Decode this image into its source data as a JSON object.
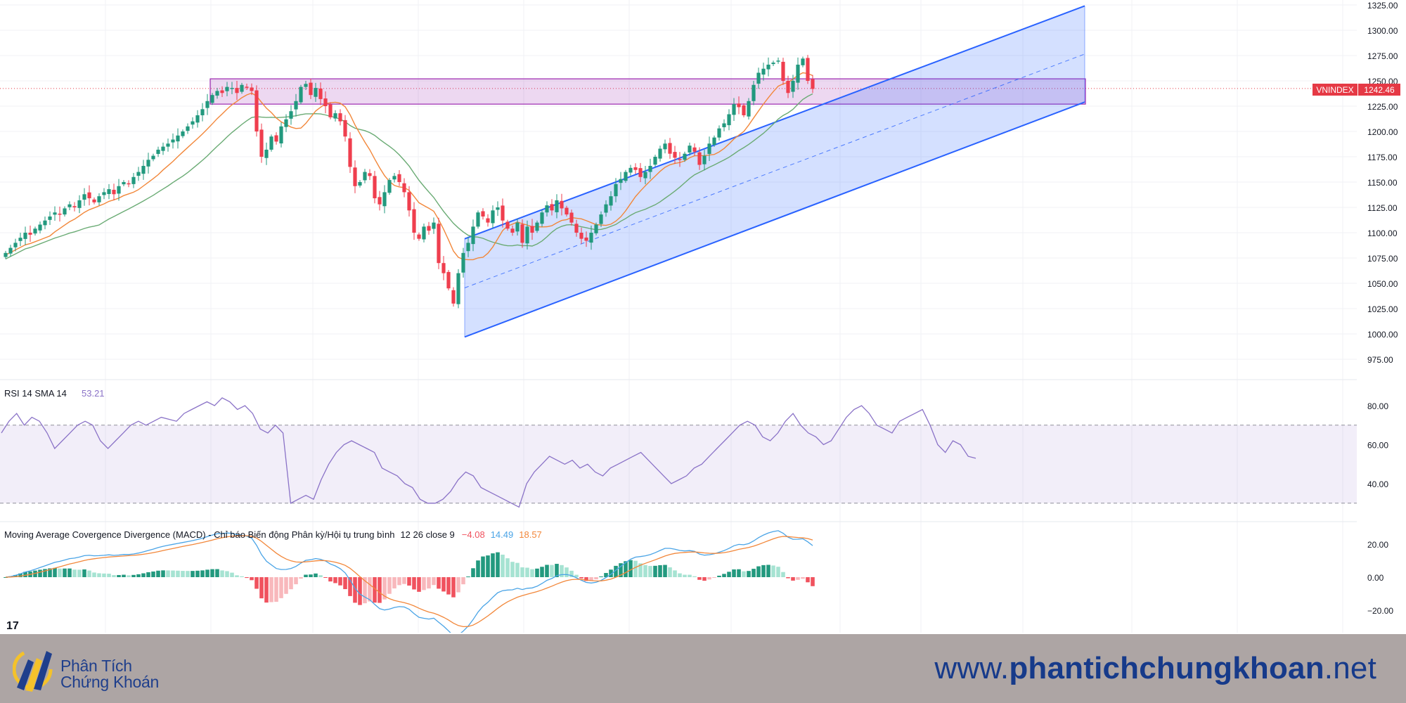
{
  "chart_data": [
    {
      "type": "candlestick",
      "symbol": "VNINDEX",
      "last_price": "1242.46",
      "ylim": [
        960,
        1325
      ],
      "yticks": [
        "1325.00",
        "1300.00",
        "1275.00",
        "1250.00",
        "1225.00",
        "1200.00",
        "1175.00",
        "1150.00",
        "1125.00",
        "1100.00",
        "1075.00",
        "1050.00",
        "1025.00",
        "1000.00",
        "975.00"
      ],
      "grid": true,
      "up_color": "#22997e",
      "down_color": "#ef3e4e",
      "ma_fast_color": "#f2873a",
      "ma_slow_color": "#6aab74",
      "resistance_zone": [
        1227,
        1252
      ],
      "channel": {
        "lower_start": 997,
        "lower_end": 1229,
        "upper_start": 1094,
        "upper_end": 1324
      },
      "closes": [
        1080,
        1085,
        1090,
        1095,
        1100,
        1098,
        1104,
        1108,
        1112,
        1116,
        1120,
        1118,
        1124,
        1128,
        1125,
        1132,
        1138,
        1134,
        1130,
        1136,
        1140,
        1143,
        1138,
        1146,
        1150,
        1148,
        1155,
        1160,
        1166,
        1172,
        1176,
        1182,
        1185,
        1188,
        1192,
        1196,
        1200,
        1205,
        1210,
        1216,
        1222,
        1230,
        1236,
        1240,
        1238,
        1244,
        1243,
        1238,
        1246,
        1244,
        1240,
        1200,
        1175,
        1182,
        1195,
        1190,
        1205,
        1212,
        1220,
        1230,
        1244,
        1247,
        1236,
        1243,
        1232,
        1225,
        1214,
        1218,
        1210,
        1195,
        1165,
        1146,
        1150,
        1160,
        1156,
        1134,
        1128,
        1140,
        1152,
        1156,
        1150,
        1140,
        1122,
        1100,
        1094,
        1106,
        1102,
        1110,
        1070,
        1060,
        1045,
        1030,
        1060,
        1080,
        1090,
        1106,
        1120,
        1116,
        1110,
        1122,
        1125,
        1112,
        1104,
        1100,
        1110,
        1090,
        1106,
        1100,
        1110,
        1120,
        1127,
        1122,
        1132,
        1124,
        1118,
        1110,
        1100,
        1094,
        1092,
        1100,
        1108,
        1118,
        1128,
        1136,
        1148,
        1153,
        1160,
        1164,
        1162,
        1155,
        1160,
        1166,
        1175,
        1183,
        1188,
        1178,
        1174,
        1172,
        1178,
        1186,
        1180,
        1167,
        1176,
        1188,
        1194,
        1203,
        1208,
        1217,
        1227,
        1224,
        1216,
        1230,
        1246,
        1258,
        1262,
        1266,
        1268,
        1270,
        1250,
        1238,
        1250,
        1266,
        1272,
        1250,
        1242
      ],
      "fast_ma_period": 10,
      "slow_ma_period": 20
    },
    {
      "type": "line",
      "title": "RSI 14 SMA 14",
      "value": "53.21",
      "ylim": [
        28,
        90
      ],
      "yticks": [
        "80.00",
        "60.00",
        "40.00"
      ],
      "band": [
        30,
        70
      ],
      "line_color": "#8a72c7",
      "values": [
        66,
        72,
        76,
        70,
        74,
        72,
        66,
        58,
        62,
        66,
        70,
        72,
        70,
        62,
        58,
        62,
        66,
        70,
        72,
        70,
        72,
        74,
        73,
        72,
        76,
        78,
        80,
        82,
        80,
        84,
        82,
        78,
        80,
        76,
        68,
        66,
        70,
        66,
        30,
        32,
        34,
        32,
        42,
        50,
        56,
        60,
        62,
        60,
        58,
        56,
        48,
        46,
        44,
        40,
        38,
        32,
        30,
        30,
        32,
        36,
        42,
        46,
        44,
        38,
        36,
        34,
        32,
        30,
        28,
        40,
        46,
        50,
        54,
        52,
        50,
        52,
        48,
        50,
        46,
        44,
        48,
        50,
        52,
        54,
        56,
        52,
        48,
        44,
        40,
        42,
        44,
        48,
        50,
        54,
        58,
        62,
        66,
        70,
        72,
        70,
        64,
        62,
        66,
        72,
        76,
        70,
        66,
        64,
        60,
        62,
        68,
        74,
        78,
        80,
        76,
        70,
        68,
        66,
        72,
        74,
        76,
        78,
        70,
        60,
        56,
        62,
        60,
        54,
        53
      ]
    },
    {
      "type": "line",
      "title": "Moving Average Covergence Divergence (MACD) - Chỉ báo Biến động Phân kỳ/Hội tụ trung bình",
      "params": "12 26 close 9",
      "values_text": {
        "hist": "−4.08",
        "macd": "14.49",
        "signal": "18.57"
      },
      "ylim": [
        -30,
        30
      ],
      "yticks": [
        "20.00",
        "0.00",
        "−20.00"
      ],
      "macd_color": "#4aa4e6",
      "signal_color": "#f2873a",
      "hist_colors": {
        "up_strong": "#22997e",
        "up_weak": "#a6e3d2",
        "down_strong": "#f0525e",
        "down_weak": "#f8b8bc"
      }
    }
  ],
  "footer": {
    "brand_line1": "Phân Tích",
    "brand_line2": "Chứng Khoán",
    "site_prefix": "www.",
    "site_name": "phantichchungkhoan",
    "site_suffix": ".net",
    "tv_logo": "17"
  }
}
